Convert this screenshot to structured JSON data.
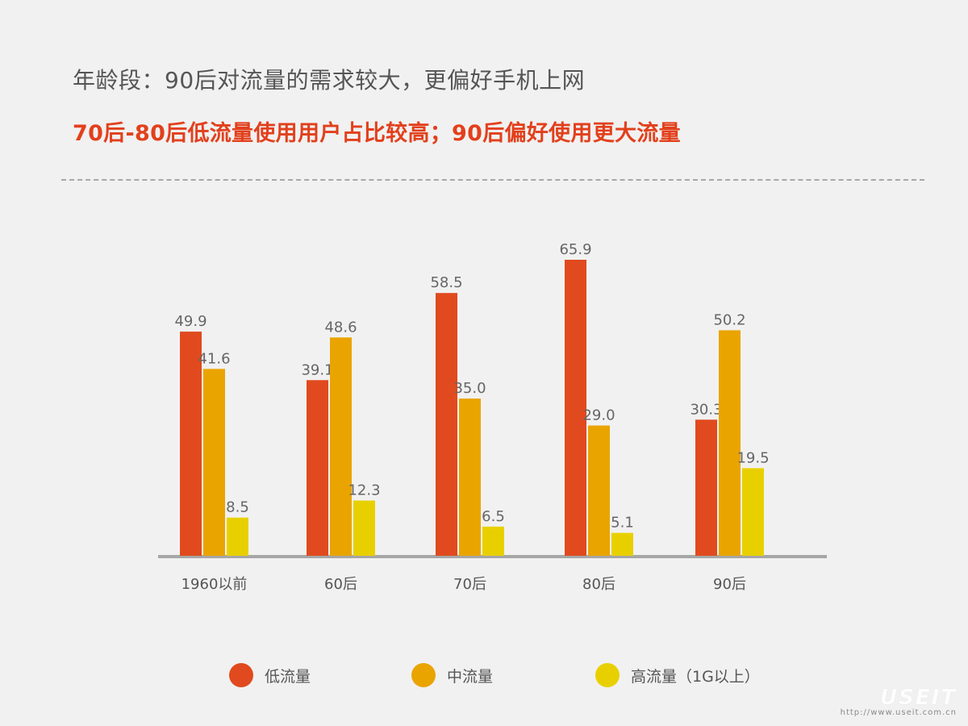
{
  "header": {
    "title": "年龄段：90后对流量的需求较大，更偏好手机上网",
    "subtitle": "70后-80后低流量使用用户占比较高；90后偏好使用更大流量"
  },
  "chart_data": {
    "type": "bar",
    "categories": [
      "1960以前",
      "60后",
      "70后",
      "80后",
      "90后"
    ],
    "series": [
      {
        "name": "低流量",
        "color": "#e04a1e",
        "values": [
          49.9,
          39.1,
          58.5,
          65.9,
          30.3
        ]
      },
      {
        "name": "中流量",
        "color": "#eaa400",
        "values": [
          41.6,
          48.6,
          35.0,
          29.0,
          50.2
        ]
      },
      {
        "name": "高流量（1G以上）",
        "color": "#e8d000",
        "values": [
          8.5,
          12.3,
          6.5,
          5.1,
          19.5
        ]
      }
    ],
    "value_labels": [
      [
        "49.9",
        "39.1",
        "58.5",
        "65.9",
        "30.3"
      ],
      [
        "41.6",
        "48.6",
        "35.0",
        "29.0",
        "50.2"
      ],
      [
        "8.5",
        "12.3",
        "6.5",
        "5.1",
        "19.5"
      ]
    ],
    "ylim": [
      0,
      70
    ],
    "legend_position": "bottom",
    "grid": false
  },
  "watermark": {
    "brand": "USEIT",
    "url": "http://www.useit.com.cn"
  }
}
